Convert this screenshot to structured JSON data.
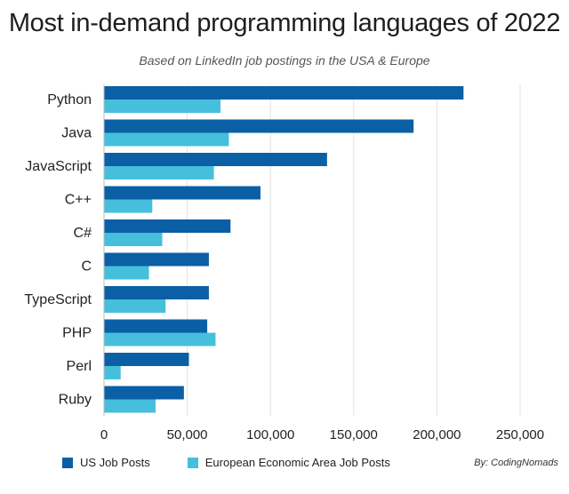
{
  "chart_data": {
    "type": "bar",
    "orientation": "horizontal",
    "title": "Most in-demand programming languages of 2022",
    "subtitle": "Based on LinkedIn job postings in the USA & Europe",
    "categories": [
      "Python",
      "Java",
      "JavaScript",
      "C++",
      "C#",
      "C",
      "TypeScript",
      "PHP",
      "Perl",
      "Ruby"
    ],
    "series": [
      {
        "name": "US Job Posts",
        "color": "#0b5fa5",
        "values": [
          216000,
          186000,
          134000,
          94000,
          76000,
          63000,
          63000,
          62000,
          51000,
          48000
        ]
      },
      {
        "name": "European Economic Area Job Posts",
        "color": "#45bfdc",
        "values": [
          70000,
          75000,
          66000,
          29000,
          35000,
          27000,
          37000,
          67000,
          10000,
          31000
        ]
      }
    ],
    "xlim": [
      0,
      250000
    ],
    "xticks": [
      0,
      50000,
      100000,
      150000,
      200000,
      250000
    ],
    "xtick_labels": [
      "0",
      "50,000",
      "100,000",
      "150,000",
      "200,000",
      "250,000"
    ],
    "grid": true,
    "legend_position": "bottom-left"
  },
  "credit": "By: CodingNomads"
}
